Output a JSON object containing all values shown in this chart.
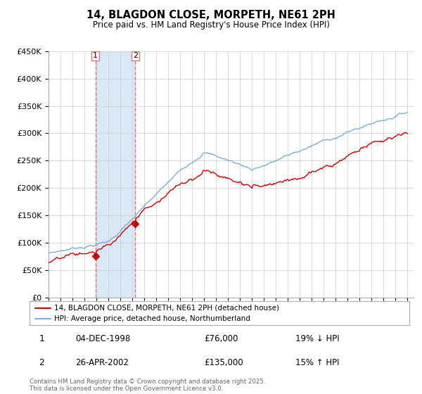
{
  "title": "14, BLAGDON CLOSE, MORPETH, NE61 2PH",
  "subtitle": "Price paid vs. HM Land Registry's House Price Index (HPI)",
  "legend_line1": "14, BLAGDON CLOSE, MORPETH, NE61 2PH (detached house)",
  "legend_line2": "HPI: Average price, detached house, Northumberland",
  "transaction1_date": "04-DEC-1998",
  "transaction1_price": 76000,
  "transaction1_label": "19% ↓ HPI",
  "transaction2_date": "26-APR-2002",
  "transaction2_price": 135000,
  "transaction2_label": "15% ↑ HPI",
  "footer": "Contains HM Land Registry data © Crown copyright and database right 2025.\nThis data is licensed under the Open Government Licence v3.0.",
  "hpi_color": "#7aaed6",
  "price_color": "#cc0000",
  "marker_color": "#cc0000",
  "vline_color": "#e87878",
  "shade_color": "#d8e8f5",
  "background_color": "#ffffff",
  "grid_color": "#cccccc",
  "ylim": [
    0,
    450000
  ],
  "yticks": [
    0,
    50000,
    100000,
    150000,
    200000,
    250000,
    300000,
    350000,
    400000,
    450000
  ],
  "start_year": 1995,
  "end_year": 2025,
  "t1_year": 1998,
  "t1_month": 11,
  "t2_year": 2002,
  "t2_month": 3,
  "p1": 76000,
  "p2": 135000
}
